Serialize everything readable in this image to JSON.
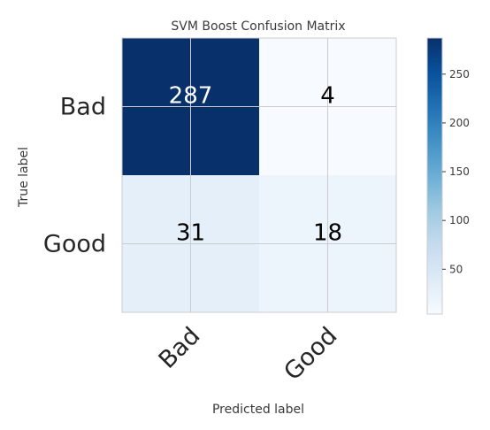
{
  "chart_data": {
    "type": "heatmap",
    "title": "SVM Boost Confusion Matrix",
    "xlabel": "Predicted label",
    "ylabel": "True label",
    "x_categories": [
      "Bad",
      "Good"
    ],
    "y_categories": [
      "Bad",
      "Good"
    ],
    "matrix": [
      [
        287,
        4
      ],
      [
        31,
        18
      ]
    ],
    "colormap": "Blues",
    "colorbar": {
      "ticks": [
        50,
        100,
        150,
        200,
        250
      ],
      "vmin": 4,
      "vmax": 287
    },
    "grid": true
  }
}
